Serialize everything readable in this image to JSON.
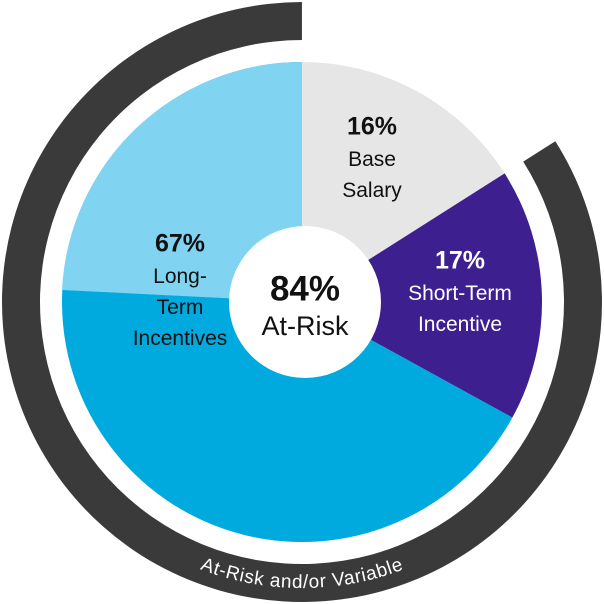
{
  "chart_data": {
    "type": "pie",
    "categories": [
      "Base\nSalary",
      "Short-Term\nIncentive",
      "Long-\nTerm\nIncentives"
    ],
    "values": [
      16,
      17,
      67
    ],
    "value_labels": [
      "16%",
      "17%",
      "67%"
    ],
    "colors": [
      "#e6e6e6",
      "#3d1f8f",
      "#00aade"
    ],
    "center_label": {
      "value": 84,
      "value_label": "84%",
      "text": "At-Risk"
    },
    "ring_label": "At-Risk and/or Variable",
    "ring_color": "#3a3a3a"
  }
}
